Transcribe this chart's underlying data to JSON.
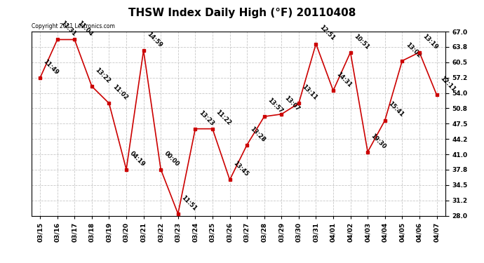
{
  "title": "THSW Index Daily High (°F) 20110408",
  "copyright": "Copyright 2011 Lestronics.com",
  "x_labels": [
    "03/15",
    "03/16",
    "03/17",
    "03/18",
    "03/19",
    "03/20",
    "03/21",
    "03/22",
    "03/23",
    "03/24",
    "03/25",
    "03/26",
    "03/27",
    "03/28",
    "03/29",
    "03/30",
    "03/31",
    "04/01",
    "04/02",
    "04/03",
    "04/04",
    "04/05",
    "04/06",
    "04/07"
  ],
  "y_values": [
    57.2,
    65.3,
    65.3,
    55.4,
    51.8,
    37.8,
    63.0,
    37.8,
    28.4,
    46.4,
    46.4,
    35.6,
    43.0,
    49.0,
    49.5,
    51.8,
    64.4,
    54.5,
    62.6,
    41.5,
    48.2,
    60.8,
    62.6,
    53.6
  ],
  "point_labels": [
    "11:49",
    "11:31",
    "11:04",
    "13:22",
    "11:02",
    "04:19",
    "14:59",
    "00:00",
    "11:51",
    "13:23",
    "11:22",
    "13:45",
    "13:28",
    "13:57",
    "13:07",
    "13:11",
    "12:51",
    "14:31",
    "10:51",
    "19:30",
    "15:41",
    "13:02",
    "13:19",
    "12:11"
  ],
  "line_color": "#cc0000",
  "marker_color": "#cc0000",
  "bg_color": "#ffffff",
  "grid_color": "#c8c8c8",
  "ylim": [
    28.0,
    67.0
  ],
  "yticks": [
    28.0,
    31.2,
    34.5,
    37.8,
    41.0,
    44.2,
    47.5,
    50.8,
    54.0,
    57.2,
    60.5,
    63.8,
    67.0
  ],
  "title_fontsize": 11,
  "label_fontsize": 6.5,
  "point_label_fontsize": 6,
  "copyright_fontsize": 5.5
}
